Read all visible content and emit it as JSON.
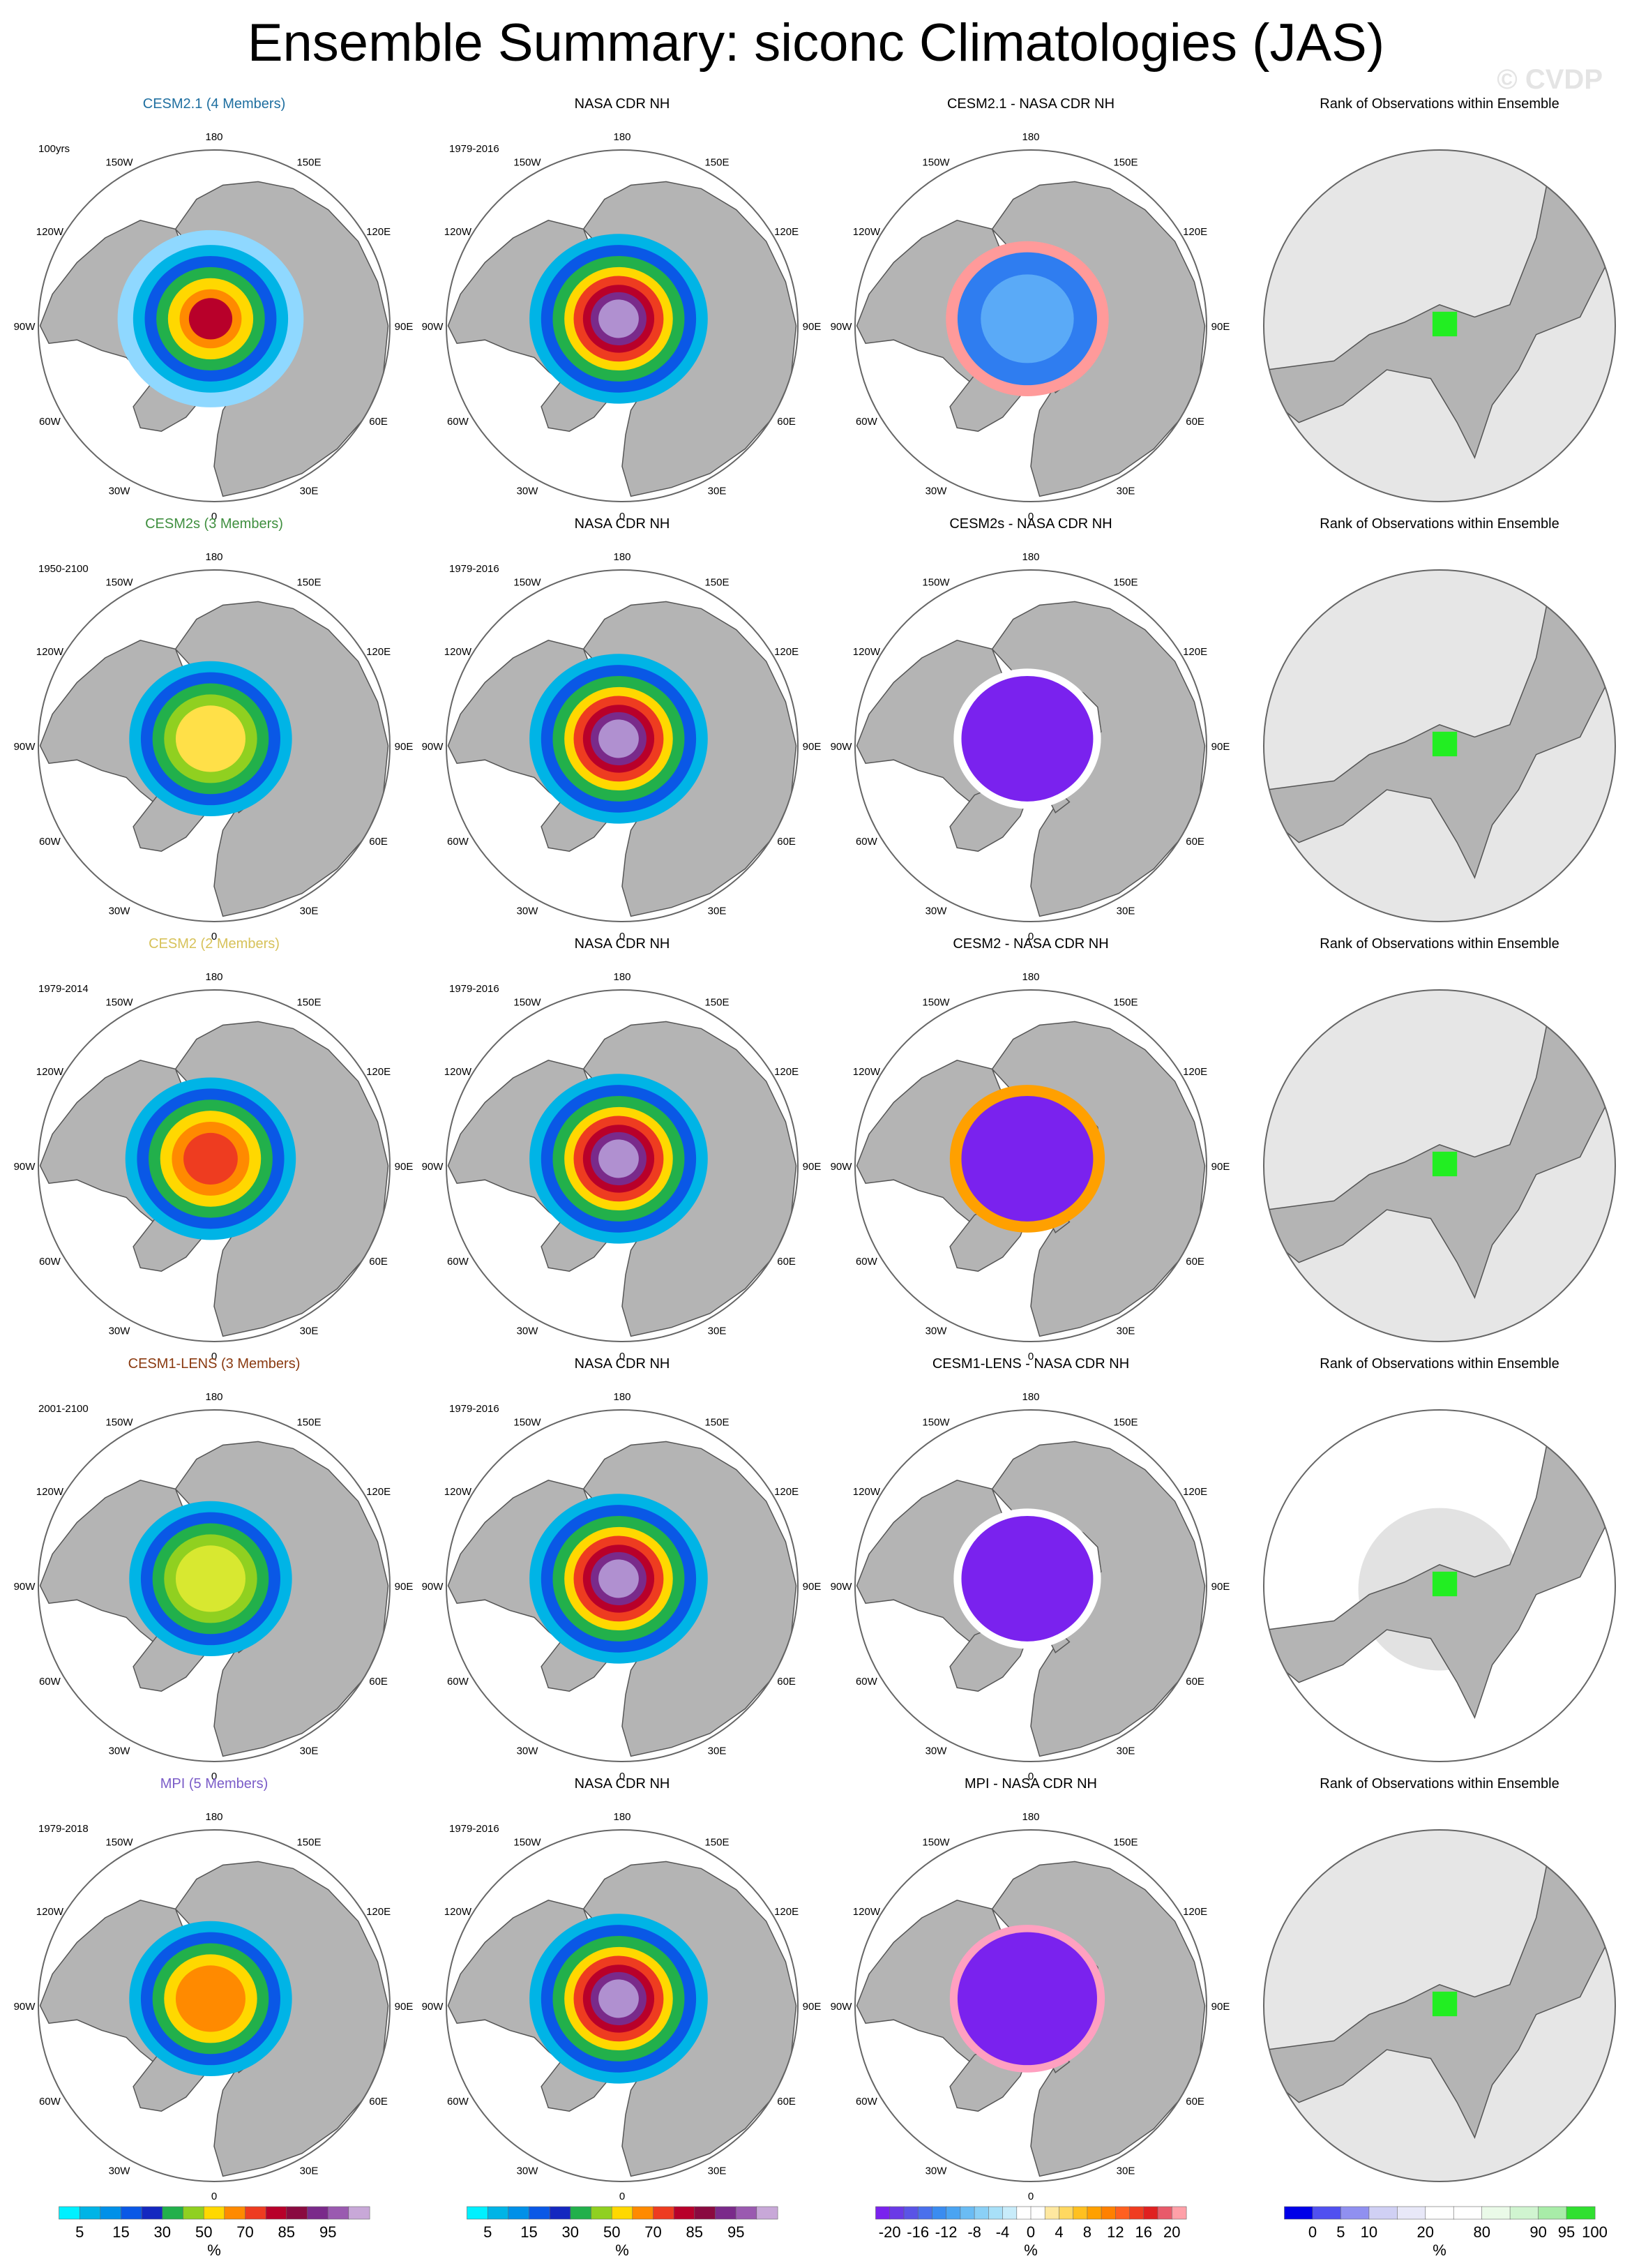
{
  "figure": {
    "title": "Ensemble Summary: siconc Climatologies (JAS)",
    "watermark": "© CVDP"
  },
  "colors": {
    "land": "#b4b4b4",
    "map_outline": "#555555",
    "rank_background": "#e6e6e6",
    "rank_green": "#22ee22"
  },
  "chart_data": {
    "type": "polar-stereographic map grid",
    "region": "Northern Hemisphere",
    "lon_labels": [
      "180",
      "150E",
      "120E",
      "90E",
      "60E",
      "30E",
      "0",
      "30W",
      "60W",
      "90W",
      "120W",
      "150W"
    ],
    "rows": [
      {
        "model": "CESM2.1 (4 Members)",
        "model_color": "#1f6fa0",
        "period": "100yrs",
        "obs_title": "NASA CDR NH",
        "obs_period": "1979-2016",
        "diff_title": "CESM2.1 - NASA CDR NH",
        "rank_title": "Rank of Observations within Ensemble",
        "model_ice": [
          [
            0.12,
            "#8fd8ff"
          ],
          [
            0.1,
            "#00b4e6"
          ],
          [
            0.085,
            "#0a58e6"
          ],
          [
            0.07,
            "#22b04b"
          ],
          [
            0.055,
            "#ffd800"
          ],
          [
            0.04,
            "#ff8a00"
          ],
          [
            0.028,
            "#b8002a"
          ]
        ],
        "diff_ice": [
          [
            0.105,
            "#ff9a9a"
          ],
          [
            0.09,
            "#2f7df0"
          ],
          [
            0.06,
            "#5aaaf7"
          ]
        ],
        "rank_halo": 0
      },
      {
        "model": "CESM2s (3 Members)",
        "model_color": "#3f8f3f",
        "period": "1950-2100",
        "obs_title": "NASA CDR NH",
        "obs_period": "1979-2016",
        "diff_title": "CESM2s - NASA CDR NH",
        "rank_title": "Rank of Observations within Ensemble",
        "model_ice": [
          [
            0.105,
            "#00b4e6"
          ],
          [
            0.09,
            "#0a58e6"
          ],
          [
            0.075,
            "#22b04b"
          ],
          [
            0.06,
            "#90d020"
          ],
          [
            0.045,
            "#ffe048"
          ]
        ],
        "diff_ice": [
          [
            0.095,
            "#ffffff"
          ],
          [
            0.085,
            "#7a22ee"
          ]
        ],
        "rank_halo": 0
      },
      {
        "model": "CESM2 (2 Members)",
        "model_color": "#d7c25a",
        "period": "1979-2014",
        "obs_title": "NASA CDR NH",
        "obs_period": "1979-2016",
        "diff_title": "CESM2 - NASA CDR NH",
        "rank_title": "Rank of Observations within Ensemble",
        "model_ice": [
          [
            0.11,
            "#00b4e6"
          ],
          [
            0.095,
            "#0a58e6"
          ],
          [
            0.08,
            "#22b04b"
          ],
          [
            0.065,
            "#ffd800"
          ],
          [
            0.05,
            "#ff8a00"
          ],
          [
            0.035,
            "#ee3c20"
          ]
        ],
        "diff_ice": [
          [
            0.1,
            "#ffa000"
          ],
          [
            0.085,
            "#7a22ee"
          ]
        ],
        "rank_halo": 0
      },
      {
        "model": "CESM1-LENS (3 Members)",
        "model_color": "#8a3a10",
        "period": "2001-2100",
        "obs_title": "NASA CDR NH",
        "obs_period": "1979-2016",
        "diff_title": "CESM1-LENS - NASA CDR NH",
        "rank_title": "Rank of Observations within Ensemble",
        "model_ice": [
          [
            0.105,
            "#00b4e6"
          ],
          [
            0.09,
            "#0a58e6"
          ],
          [
            0.075,
            "#22b04b"
          ],
          [
            0.06,
            "#90d020"
          ],
          [
            0.045,
            "#d8e830"
          ]
        ],
        "diff_ice": [
          [
            0.095,
            "#ffffff"
          ],
          [
            0.085,
            "#7a22ee"
          ]
        ],
        "rank_halo": 0.11
      },
      {
        "model": "MPI (5 Members)",
        "model_color": "#7b5cc8",
        "period": "1979-2018",
        "obs_title": "NASA CDR NH",
        "obs_period": "1979-2016",
        "diff_title": "MPI - NASA CDR NH",
        "rank_title": "Rank of Observations within Ensemble",
        "model_ice": [
          [
            0.105,
            "#00b4e6"
          ],
          [
            0.09,
            "#0a58e6"
          ],
          [
            0.075,
            "#22b04b"
          ],
          [
            0.06,
            "#ffd800"
          ],
          [
            0.045,
            "#ff8a00"
          ]
        ],
        "diff_ice": [
          [
            0.1,
            "#ffa0c0"
          ],
          [
            0.09,
            "#7a22ee"
          ]
        ],
        "rank_halo": 0
      }
    ],
    "obs_ice": [
      [
        0.115,
        "#00b4e6"
      ],
      [
        0.1,
        "#0a58e6"
      ],
      [
        0.085,
        "#22b04b"
      ],
      [
        0.07,
        "#ffd800"
      ],
      [
        0.058,
        "#ee3c20"
      ],
      [
        0.046,
        "#b8002a"
      ],
      [
        0.036,
        "#7a2a8a"
      ],
      [
        0.026,
        "#b090d0"
      ]
    ],
    "colorbars": [
      {
        "unit": "%",
        "ticks": [
          "5",
          "15",
          "30",
          "50",
          "70",
          "85",
          "95"
        ],
        "tick_at_box": [
          1,
          3,
          5,
          7,
          9,
          11,
          13
        ],
        "colors": [
          "#00f0ff",
          "#00b4e6",
          "#0090e8",
          "#0a58e6",
          "#1428c0",
          "#22b04b",
          "#90d020",
          "#ffd800",
          "#ff8a00",
          "#ee3c20",
          "#b8002a",
          "#8a0a40",
          "#7a2a8a",
          "#9a5ab0",
          "#c8a8d8"
        ]
      },
      {
        "unit": "%",
        "ticks": [
          "5",
          "15",
          "30",
          "50",
          "70",
          "85",
          "95"
        ],
        "tick_at_box": [
          1,
          3,
          5,
          7,
          9,
          11,
          13
        ],
        "colors": [
          "#00f0ff",
          "#00b4e6",
          "#0090e8",
          "#0a58e6",
          "#1428c0",
          "#22b04b",
          "#90d020",
          "#ffd800",
          "#ff8a00",
          "#ee3c20",
          "#b8002a",
          "#8a0a40",
          "#7a2a8a",
          "#9a5ab0",
          "#c8a8d8"
        ]
      },
      {
        "unit": "%",
        "ticks": [
          "-20",
          "-16",
          "-12",
          "-8",
          "-4",
          "0",
          "4",
          "8",
          "12",
          "16",
          "20"
        ],
        "tick_at_box": [
          1,
          3,
          5,
          7,
          9,
          11,
          13,
          15,
          17,
          19,
          21
        ],
        "colors": [
          "#7a22ee",
          "#6a3ae6",
          "#5a54e6",
          "#4a70ec",
          "#3a8cf0",
          "#4aa4f2",
          "#6abcf4",
          "#8ad0f6",
          "#a8e0f8",
          "#c8ecfa",
          "#ffffff",
          "#ffffff",
          "#ffe8a0",
          "#ffd860",
          "#ffc020",
          "#ffa000",
          "#ff8000",
          "#ff6020",
          "#f03c20",
          "#e02020",
          "#e85a6a",
          "#ffa0a8"
        ]
      },
      {
        "unit": "%",
        "ticks": [
          "0",
          "5",
          "10",
          "20",
          "80",
          "90",
          "95",
          "100"
        ],
        "tick_at_box": [
          1,
          2,
          3,
          5,
          7,
          9,
          10,
          11
        ],
        "colors": [
          "#0000e8",
          "#5050f0",
          "#9090f0",
          "#d0d0f4",
          "#e8e8f8",
          "#ffffff",
          "#ffffff",
          "#eafae8",
          "#d0f4d0",
          "#a8eca8",
          "#30e030"
        ]
      }
    ]
  }
}
